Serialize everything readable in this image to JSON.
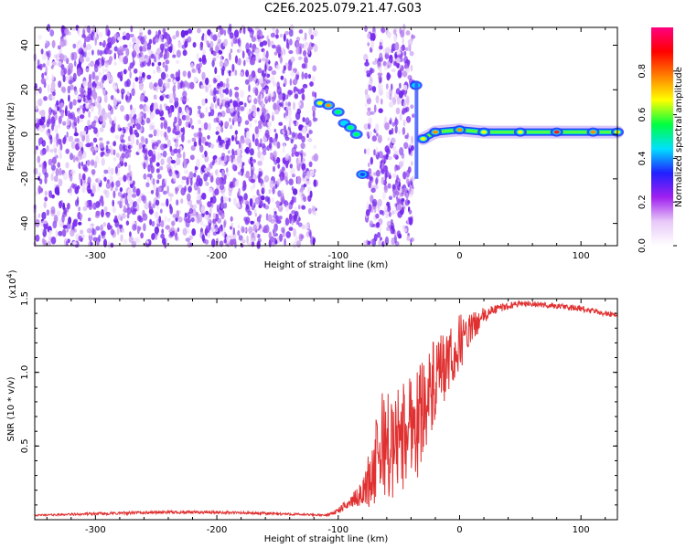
{
  "title": "C2E6.2025.079.21.47.G03",
  "chart_data": [
    {
      "type": "heatmap",
      "xlabel": "Height of straight line (km)",
      "ylabel": "Frequency (Hz)",
      "xlim": [
        -350,
        130
      ],
      "ylim": [
        -50,
        48
      ],
      "xticks": [
        -300,
        -200,
        -100,
        0,
        100
      ],
      "yticks": [
        -40,
        -20,
        0,
        20,
        40
      ],
      "colorbar": {
        "label": "Normalized spectral amplitude",
        "range": [
          0.0,
          1.0
        ],
        "ticks": [
          0.0,
          0.2,
          0.4,
          0.6,
          0.8
        ],
        "tick_labels": [
          "0.0",
          "0.2",
          "0.4",
          "0.6",
          "0.8"
        ],
        "colors": [
          "#ffffff",
          "#e8c8f8",
          "#a020f0",
          "#2020ff",
          "#00e0ff",
          "#00ff40",
          "#ffff00",
          "#ff8000",
          "#ff0000",
          "#ff0080"
        ]
      },
      "features": {
        "noise_region_x": [
          -350,
          -38
        ],
        "blank_gap_x": [
          -118,
          -78
        ],
        "signal_ridge": [
          {
            "x": -115,
            "y": 14,
            "amp": 0.7
          },
          {
            "x": -108,
            "y": 13,
            "amp": 0.8
          },
          {
            "x": -100,
            "y": 10,
            "amp": 0.5
          },
          {
            "x": -95,
            "y": 5,
            "amp": 0.4
          },
          {
            "x": -90,
            "y": 3,
            "amp": 0.5
          },
          {
            "x": -85,
            "y": 0,
            "amp": 0.45
          },
          {
            "x": -80,
            "y": -18,
            "amp": 0.2
          },
          {
            "x": -36,
            "y": 22,
            "amp": 0.35
          },
          {
            "x": -30,
            "y": -2,
            "amp": 0.6
          },
          {
            "x": -20,
            "y": 1,
            "amp": 0.8
          },
          {
            "x": 0,
            "y": 2,
            "amp": 0.8
          },
          {
            "x": 20,
            "y": 1,
            "amp": 0.7
          },
          {
            "x": 50,
            "y": 1,
            "amp": 0.65
          },
          {
            "x": 80,
            "y": 1,
            "amp": 0.9
          },
          {
            "x": 110,
            "y": 1,
            "amp": 0.75
          },
          {
            "x": 130,
            "y": 1,
            "amp": 0.7
          }
        ]
      }
    },
    {
      "type": "line",
      "xlabel": "Height of straight line (km)",
      "ylabel": "SNR (10 * v/v)",
      "multiplier_label": "(x10",
      "multiplier_exp": "4",
      "multiplier_close": ")",
      "xlim": [
        -350,
        130
      ],
      "ylim": [
        0,
        1.5
      ],
      "xticks": [
        -300,
        -200,
        -100,
        0,
        100
      ],
      "yticks": [
        0.5,
        1.0,
        1.5
      ],
      "ytick_labels": [
        "0.5",
        "1.0",
        "1.5"
      ],
      "color": "#e03030",
      "series": [
        {
          "x": [
            -350,
            -300,
            -250,
            -200,
            -150,
            -110,
            -100,
            -90,
            -80,
            -70,
            -62,
            -55,
            -50,
            -45,
            -40,
            -35,
            -30,
            -25,
            -20,
            -15,
            -10,
            -5,
            0,
            10,
            20,
            30,
            50,
            80,
            100,
            120,
            130
          ],
          "values": [
            0.03,
            0.04,
            0.05,
            0.05,
            0.04,
            0.03,
            0.06,
            0.12,
            0.18,
            0.35,
            0.55,
            0.45,
            0.6,
            0.55,
            0.7,
            0.65,
            0.8,
            0.85,
            0.9,
            1.0,
            1.05,
            1.1,
            1.2,
            1.3,
            1.38,
            1.43,
            1.47,
            1.45,
            1.43,
            1.4,
            1.39
          ],
          "spread": [
            0.005,
            0.01,
            0.01,
            0.01,
            0.01,
            0.005,
            0.02,
            0.04,
            0.08,
            0.3,
            0.4,
            0.35,
            0.35,
            0.4,
            0.35,
            0.4,
            0.35,
            0.3,
            0.35,
            0.25,
            0.25,
            0.2,
            0.2,
            0.1,
            0.06,
            0.03,
            0.02,
            0.02,
            0.02,
            0.02,
            0.02
          ]
        }
      ]
    }
  ]
}
